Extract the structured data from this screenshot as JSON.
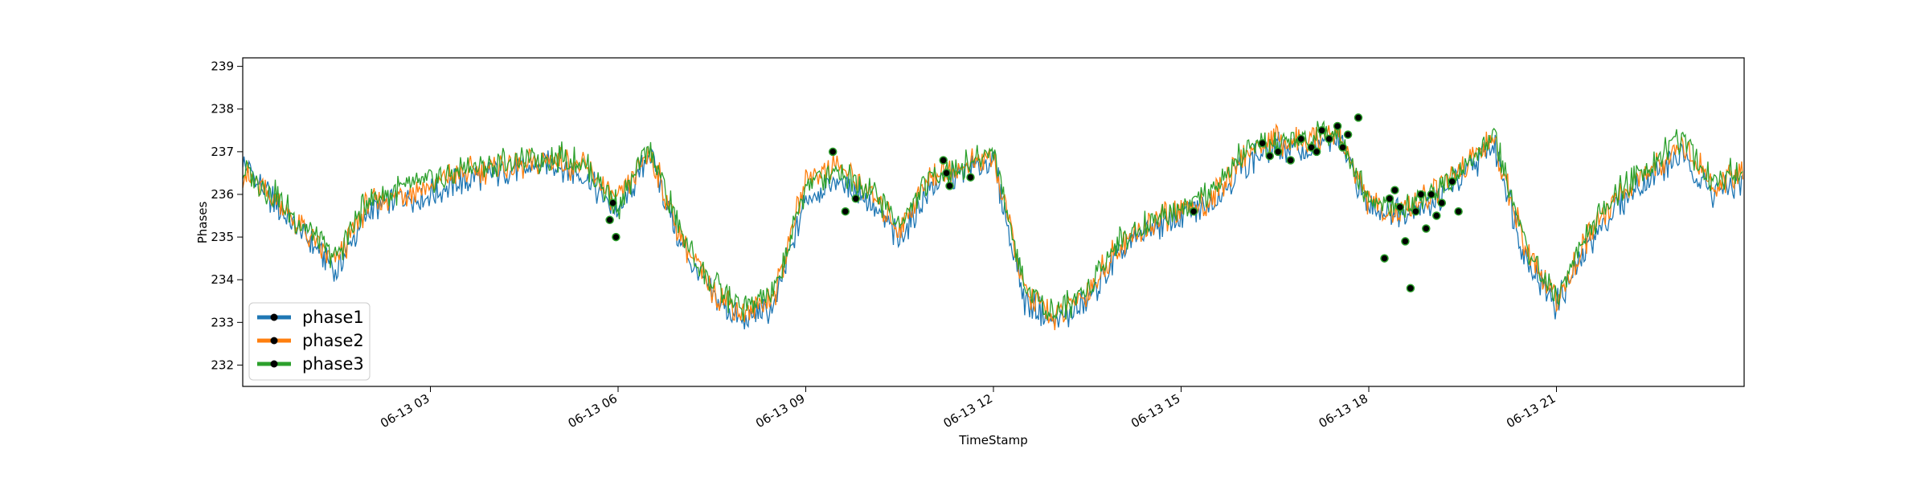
{
  "chart_data": {
    "type": "line",
    "xlabel": "TimeStamp",
    "ylabel": "Phases",
    "xlim": [
      "2023-06-13 00:00",
      "2023-06-14 00:00"
    ],
    "ylim": [
      231.5,
      239.2
    ],
    "x_ticks": [
      {
        "value": "2023-06-13 03:00",
        "label": "06-13 03"
      },
      {
        "value": "2023-06-13 06:00",
        "label": "06-13 06"
      },
      {
        "value": "2023-06-13 09:00",
        "label": "06-13 09"
      },
      {
        "value": "2023-06-13 12:00",
        "label": "06-13 12"
      },
      {
        "value": "2023-06-13 15:00",
        "label": "06-13 15"
      },
      {
        "value": "2023-06-13 18:00",
        "label": "06-13 18"
      },
      {
        "value": "2023-06-13 21:00",
        "label": "06-13 21"
      }
    ],
    "y_ticks": [
      232,
      233,
      234,
      235,
      236,
      237,
      238,
      239
    ],
    "grid": false,
    "legend_position": "lower-left",
    "x": [
      "00:00",
      "00:30",
      "01:00",
      "01:30",
      "02:00",
      "02:30",
      "03:00",
      "03:30",
      "04:00",
      "04:30",
      "05:00",
      "05:30",
      "06:00",
      "06:30",
      "07:00",
      "07:30",
      "08:00",
      "08:30",
      "09:00",
      "09:30",
      "10:00",
      "10:30",
      "11:00",
      "11:30",
      "12:00",
      "12:30",
      "13:00",
      "13:30",
      "14:00",
      "14:30",
      "15:00",
      "15:30",
      "16:00",
      "16:30",
      "17:00",
      "17:30",
      "18:00",
      "18:30",
      "19:00",
      "19:30",
      "20:00",
      "20:30",
      "21:00",
      "21:30",
      "22:00",
      "22:30",
      "23:00",
      "23:30",
      "23:59"
    ],
    "series": [
      {
        "name": "phase1",
        "color": "#1f77b4",
        "values": [
          236.7,
          235.8,
          235.0,
          234.2,
          235.6,
          235.9,
          236.0,
          236.3,
          236.5,
          236.6,
          236.7,
          236.4,
          235.5,
          237.0,
          234.8,
          233.6,
          233.0,
          233.4,
          235.9,
          236.3,
          235.9,
          234.9,
          236.2,
          236.5,
          236.8,
          233.5,
          233.0,
          233.5,
          234.6,
          235.2,
          235.5,
          235.8,
          236.7,
          237.1,
          237.0,
          237.3,
          235.7,
          235.6,
          235.8,
          236.4,
          237.2,
          234.5,
          233.4,
          234.8,
          235.8,
          236.4,
          236.9,
          236.0,
          236.3
        ]
      },
      {
        "name": "phase2",
        "color": "#ff7f0e",
        "values": [
          236.5,
          235.9,
          235.1,
          234.4,
          235.8,
          236.0,
          236.2,
          236.5,
          236.6,
          236.7,
          236.8,
          236.6,
          235.8,
          237.0,
          235.0,
          233.8,
          233.2,
          233.6,
          236.4,
          236.7,
          236.1,
          235.2,
          236.5,
          236.6,
          236.9,
          233.7,
          233.1,
          233.7,
          234.8,
          235.3,
          235.6,
          235.9,
          236.9,
          237.3,
          237.2,
          237.5,
          235.8,
          235.5,
          236.0,
          236.6,
          237.3,
          234.7,
          233.5,
          235.0,
          236.0,
          236.6,
          237.2,
          236.2,
          236.5
        ]
      },
      {
        "name": "phase3",
        "color": "#2ca02c",
        "values": [
          236.6,
          236.0,
          235.2,
          234.5,
          235.9,
          236.1,
          236.3,
          236.6,
          236.7,
          236.8,
          236.9,
          236.7,
          235.7,
          237.1,
          235.1,
          233.9,
          233.3,
          233.7,
          236.2,
          236.6,
          236.2,
          235.3,
          236.4,
          236.7,
          237.0,
          233.8,
          233.2,
          233.8,
          234.9,
          235.4,
          235.7,
          236.0,
          237.0,
          237.2,
          237.3,
          237.6,
          235.8,
          235.7,
          236.1,
          236.5,
          237.4,
          234.8,
          233.6,
          235.1,
          236.1,
          236.7,
          237.3,
          236.3,
          236.6
        ]
      }
    ],
    "markers_x": [
      "05:52",
      "05:55",
      "05:58",
      "09:26",
      "09:38",
      "09:48",
      "11:12",
      "11:15",
      "11:18",
      "11:38",
      "15:12",
      "16:18",
      "16:25",
      "16:33",
      "16:45",
      "16:55",
      "17:05",
      "17:10",
      "17:15",
      "17:22",
      "17:30",
      "17:35",
      "17:40",
      "17:50",
      "18:15",
      "18:20",
      "18:25",
      "18:30",
      "18:35",
      "18:40",
      "18:45",
      "18:50",
      "18:55",
      "19:00",
      "19:05",
      "19:10",
      "19:20",
      "19:26"
    ],
    "markers_y": [
      235.4,
      235.8,
      235.0,
      237.0,
      235.6,
      235.9,
      236.8,
      236.5,
      236.2,
      236.4,
      235.6,
      237.2,
      236.9,
      237.0,
      236.8,
      237.3,
      237.1,
      237.0,
      237.5,
      237.3,
      237.6,
      237.1,
      237.4,
      237.8,
      234.5,
      235.9,
      236.1,
      235.7,
      234.9,
      233.8,
      235.6,
      236.0,
      235.2,
      236.0,
      235.5,
      235.8,
      236.3,
      235.6
    ]
  }
}
